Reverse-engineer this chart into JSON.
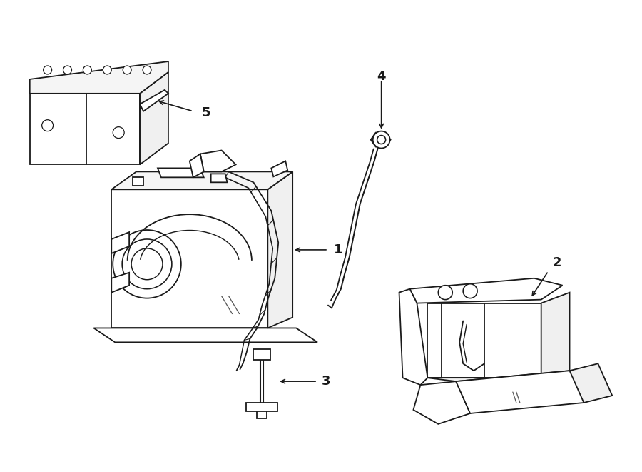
{
  "background_color": "#ffffff",
  "line_color": "#1a1a1a",
  "line_width": 1.3,
  "figsize": [
    9.0,
    6.61
  ],
  "dpi": 100
}
